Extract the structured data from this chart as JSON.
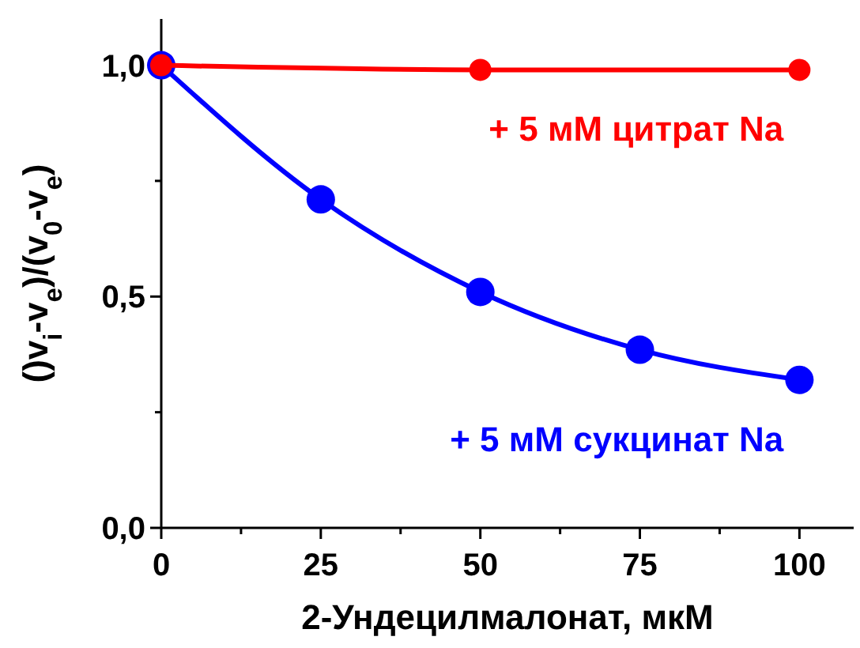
{
  "chart_data": {
    "type": "line",
    "xlabel": "2-Ундецилмалонат, мкМ",
    "ylabel": "()v$_{i}$-v$_{e}$)/(v$_{0}$-v$_{e}$)",
    "x": [
      0,
      25,
      50,
      75,
      100
    ],
    "xlim": [
      0,
      108.5
    ],
    "ylim": [
      0,
      1.1
    ],
    "xticks": [
      0,
      {
        "value": 12.5,
        "label": null
      },
      25,
      {
        "value": 37.5,
        "label": null
      },
      50,
      {
        "value": 62.5,
        "label": null
      },
      75,
      {
        "value": 87.5,
        "label": null
      },
      100
    ],
    "yticks": [
      {
        "value": 0,
        "label": "0,0"
      },
      {
        "value": 0.25,
        "label": null
      },
      {
        "value": 0.5,
        "label": "0,5"
      },
      {
        "value": 0.75,
        "label": null
      },
      {
        "value": 1,
        "label": "1,0"
      }
    ],
    "marker": "circle",
    "line_style": "solid",
    "grid": false,
    "legend": false,
    "series": [
      {
        "name": "+ 5 мМ цитрат Na",
        "color": "#ff0000",
        "x": [
          0,
          50,
          100
        ],
        "values": [
          1.0,
          0.99,
          0.99
        ]
      },
      {
        "name": "+ 5 мМ сукцинат Na",
        "color": "#0000ff",
        "values": [
          1.0,
          0.71,
          0.51,
          0.385,
          0.32
        ]
      }
    ]
  }
}
